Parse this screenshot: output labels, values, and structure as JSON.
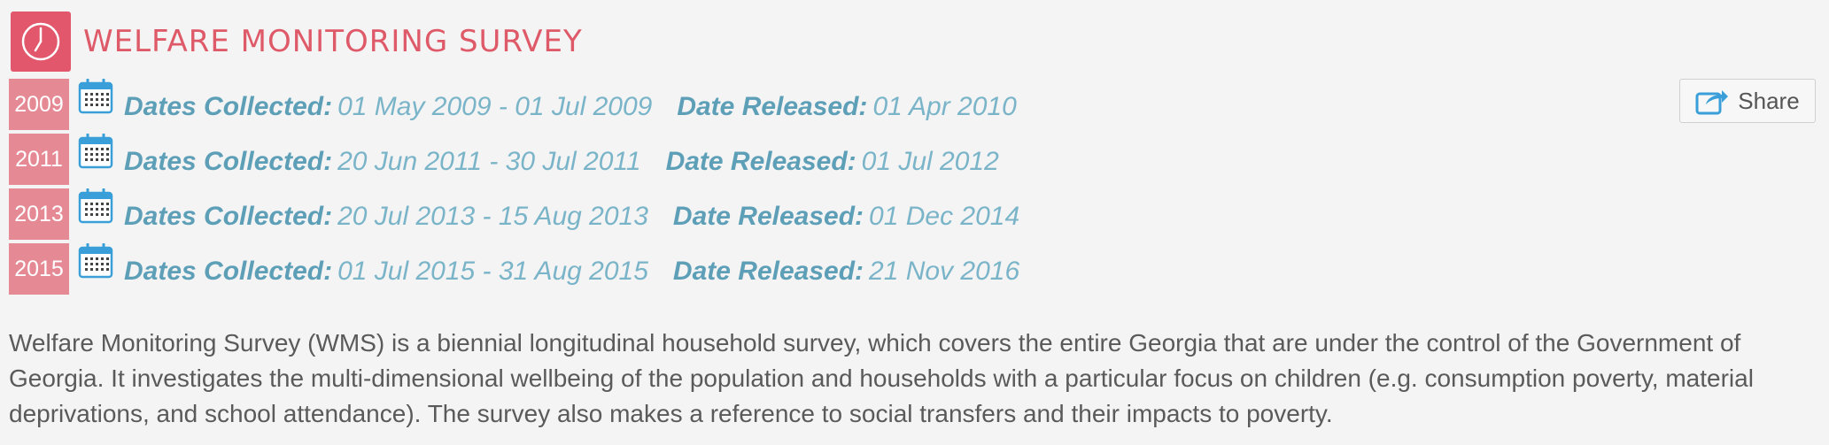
{
  "header": {
    "title": "WELFARE MONITORING SURVEY",
    "icon": "clock-icon",
    "accent_color": "#e2576b"
  },
  "rows": [
    {
      "year": "2009",
      "collected_label": "Dates Collected:",
      "collected_value": "01 May 2009 - 01 Jul 2009",
      "released_label": "Date Released:",
      "released_value": "01 Apr 2010"
    },
    {
      "year": "2011",
      "collected_label": "Dates Collected:",
      "collected_value": "20 Jun 2011 - 30 Jul 2011",
      "released_label": "Date Released:",
      "released_value": "01 Jul 2012"
    },
    {
      "year": "2013",
      "collected_label": "Dates Collected:",
      "collected_value": "20 Jul 2013 - 15 Aug 2013",
      "released_label": "Date Released:",
      "released_value": "01 Dec 2014"
    },
    {
      "year": "2015",
      "collected_label": "Dates Collected:",
      "collected_value": "01 Jul 2015 - 31 Aug 2015",
      "released_label": "Date Released:",
      "released_value": "21 Nov 2016"
    }
  ],
  "share": {
    "label": "Share",
    "icon": "share-icon"
  },
  "description": "Welfare Monitoring Survey (WMS) is a biennial longitudinal household survey, which covers the entire Georgia that are under the control of the Government of Georgia. It investigates the multi-dimensional wellbeing of the population and households with a particular focus on children (e.g. consumption poverty, material deprivations, and school attendance). The survey also makes a reference to social transfers and their impacts to poverty.",
  "colors": {
    "year_badge": "#e58a95",
    "label_blue": "#5e9fb8",
    "value_blue": "#7ab4c8"
  }
}
